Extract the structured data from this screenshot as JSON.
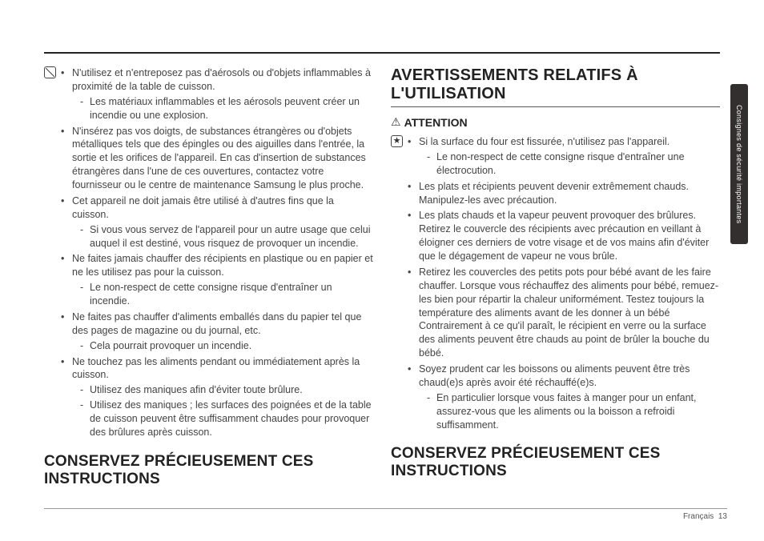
{
  "left": {
    "bullets": [
      {
        "text": "N'utilisez et n'entreposez pas d'aérosols ou d'objets inflammables à proximité de la table de cuisson.",
        "sub": [
          "Les matériaux inflammables et les aérosols peuvent créer un incendie ou une explosion."
        ]
      },
      {
        "text": "N'insérez pas vos doigts, de substances étrangères ou d'objets métalliques tels que des épingles ou des aiguilles dans l'entrée, la sortie et les orifices de l'appareil. En cas d'insertion de substances étrangères dans l'une de ces ouvertures, contactez votre fournisseur ou le centre de maintenance Samsung le plus proche."
      },
      {
        "text": "Cet appareil ne doit jamais être utilisé à d'autres fins que la cuisson.",
        "sub": [
          "Si vous vous servez de l'appareil pour un autre usage que celui auquel il est destiné, vous risquez de provoquer un incendie."
        ]
      },
      {
        "text": "Ne faites jamais chauffer des récipients en plastique ou en papier et ne les utilisez pas pour la cuisson.",
        "sub": [
          "Le non-respect de cette consigne risque d'entraîner un incendie."
        ]
      },
      {
        "text": "Ne faites pas chauffer d'aliments emballés dans du papier tel que des pages de magazine ou du journal, etc.",
        "sub": [
          "Cela pourrait provoquer un incendie."
        ]
      },
      {
        "text": "Ne touchez pas les aliments pendant ou immédiatement après la cuisson.",
        "sub": [
          "Utilisez des maniques afin d'éviter toute brûlure.",
          "Utilisez des maniques ; les surfaces des poignées et de la table de cuisson peuvent être suffisamment chaudes pour provoquer des brûlures après cuisson."
        ]
      }
    ],
    "footer": "CONSERVEZ PRÉCIEUSEMENT CES INSTRUCTIONS"
  },
  "right": {
    "title": "AVERTISSEMENTS RELATIFS À L'UTILISATION",
    "attention": "ATTENTION",
    "bullets": [
      {
        "text": "Si la surface du four est fissurée, n'utilisez pas l'appareil.",
        "sub": [
          "Le non-respect de cette consigne risque d'entraîner une électrocution."
        ]
      },
      {
        "text": "Les plats et récipients peuvent devenir extrêmement chauds. Manipulez-les avec précaution."
      },
      {
        "text": "Les plats chauds et la vapeur peuvent provoquer des brûlures. Retirez le couvercle des récipients avec précaution en veillant à éloigner ces derniers de votre visage et de vos mains afin d'éviter que le dégagement de vapeur ne vous brûle."
      },
      {
        "text": "Retirez les couvercles des petits pots pour bébé avant de les faire chauffer. Lorsque vous réchauffez des aliments pour bébé, remuez-les bien pour répartir la chaleur uniformément. Testez toujours la température des aliments avant de les donner à un bébé Contrairement à ce qu'il paraît, le récipient en verre ou la surface des aliments peuvent être chauds au point de brûler la bouche du bébé."
      },
      {
        "text": "Soyez prudent car les boissons ou aliments peuvent être très chaud(e)s après avoir été réchauffé(e)s.",
        "sub": [
          "En particulier lorsque vous faites à manger pour un enfant, assurez-vous que les aliments ou la boisson a refroidi suffisamment."
        ]
      }
    ],
    "footer": "CONSERVEZ PRÉCIEUSEMENT CES INSTRUCTIONS"
  },
  "sidetab": "Consignes de sécurité importantes",
  "page": {
    "lang": "Français",
    "num": "13"
  }
}
